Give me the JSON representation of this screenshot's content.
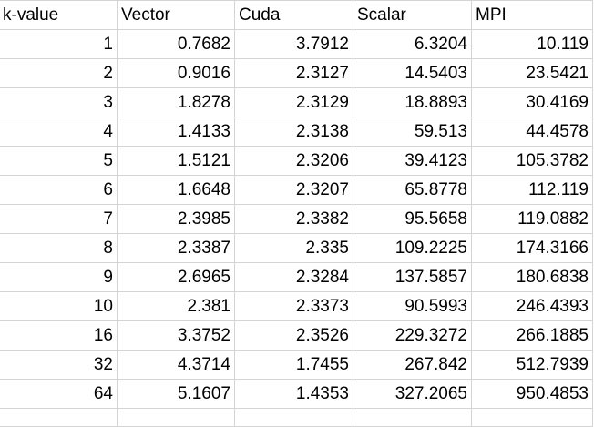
{
  "sheet": {
    "headers": [
      "k-value",
      "Vector",
      "Cuda",
      "Scalar",
      "MPI"
    ],
    "rows": [
      [
        "1",
        "0.7682",
        "3.7912",
        "6.3204",
        "10.119"
      ],
      [
        "2",
        "0.9016",
        "2.3127",
        "14.5403",
        "23.5421"
      ],
      [
        "3",
        "1.8278",
        "2.3129",
        "18.8893",
        "30.4169"
      ],
      [
        "4",
        "1.4133",
        "2.3138",
        "59.513",
        "44.4578"
      ],
      [
        "5",
        "1.5121",
        "2.3206",
        "39.4123",
        "105.3782"
      ],
      [
        "6",
        "1.6648",
        "2.3207",
        "65.8778",
        "112.119"
      ],
      [
        "7",
        "2.3985",
        "2.3382",
        "95.5658",
        "119.0882"
      ],
      [
        "8",
        "2.3387",
        "2.335",
        "109.2225",
        "174.3166"
      ],
      [
        "9",
        "2.6965",
        "2.3284",
        "137.5857",
        "180.6838"
      ],
      [
        "10",
        "2.381",
        "2.3373",
        "90.5993",
        "246.4393"
      ],
      [
        "16",
        "3.3752",
        "2.3526",
        "229.3272",
        "266.1885"
      ],
      [
        "32",
        "4.3714",
        "1.7455",
        "267.842",
        "512.7939"
      ],
      [
        "64",
        "5.1607",
        "1.4353",
        "327.2065",
        "950.4853"
      ]
    ]
  }
}
